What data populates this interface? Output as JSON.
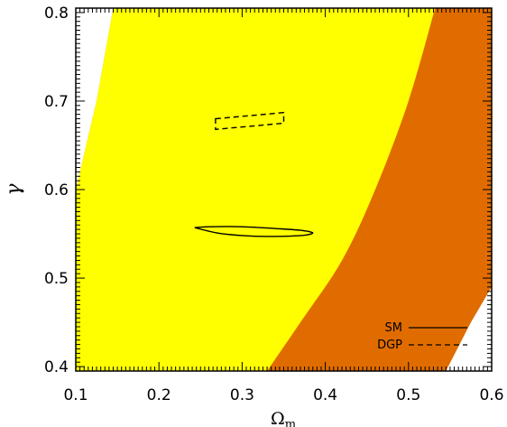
{
  "chart_data": {
    "type": "contour",
    "xlabel": "Ωm",
    "ylabel": "γ",
    "xlim": [
      0.1,
      0.6
    ],
    "ylim": [
      0.395,
      0.805
    ],
    "x_ticks": [
      "0.1",
      "0.2",
      "0.3",
      "0.4",
      "0.5",
      "0.6"
    ],
    "y_ticks": [
      "0.4",
      "0.5",
      "0.6",
      "0.7",
      "0.8"
    ],
    "colors": {
      "outer_band": "#e06c00",
      "inner_band": "#ffff00",
      "background": "#ffffff",
      "line": "#000000"
    },
    "bands": [
      {
        "name": "outer",
        "left_boundary": [
          [
            0.1,
            0.6
          ],
          [
            0.125,
            0.7
          ],
          [
            0.145,
            0.805
          ]
        ],
        "right_boundary": [
          [
            0.545,
            0.395
          ],
          [
            0.575,
            0.45
          ],
          [
            0.6,
            0.49
          ]
        ]
      },
      {
        "name": "inner",
        "left_boundary": [
          [
            0.1,
            0.6
          ],
          [
            0.125,
            0.7
          ],
          [
            0.145,
            0.805
          ]
        ],
        "right_boundary": [
          [
            0.33,
            0.395
          ],
          [
            0.37,
            0.45
          ],
          [
            0.42,
            0.52
          ],
          [
            0.46,
            0.6
          ],
          [
            0.5,
            0.7
          ],
          [
            0.532,
            0.805
          ]
        ]
      }
    ],
    "series": [
      {
        "name": "SM",
        "style": "solid",
        "contour": [
          [
            0.243,
            0.557
          ],
          [
            0.26,
            0.558
          ],
          [
            0.3,
            0.558
          ],
          [
            0.34,
            0.556
          ],
          [
            0.37,
            0.554
          ],
          [
            0.385,
            0.551
          ],
          [
            0.37,
            0.548
          ],
          [
            0.33,
            0.547
          ],
          [
            0.3,
            0.548
          ],
          [
            0.27,
            0.551
          ],
          [
            0.243,
            0.557
          ]
        ]
      },
      {
        "name": "DGP",
        "style": "dashed",
        "contour": [
          [
            0.268,
            0.68
          ],
          [
            0.35,
            0.687
          ],
          [
            0.35,
            0.675
          ],
          [
            0.268,
            0.668
          ],
          [
            0.268,
            0.68
          ]
        ]
      }
    ],
    "legend": {
      "position": "bottom-right",
      "entries": [
        "SM",
        "DGP"
      ]
    }
  }
}
